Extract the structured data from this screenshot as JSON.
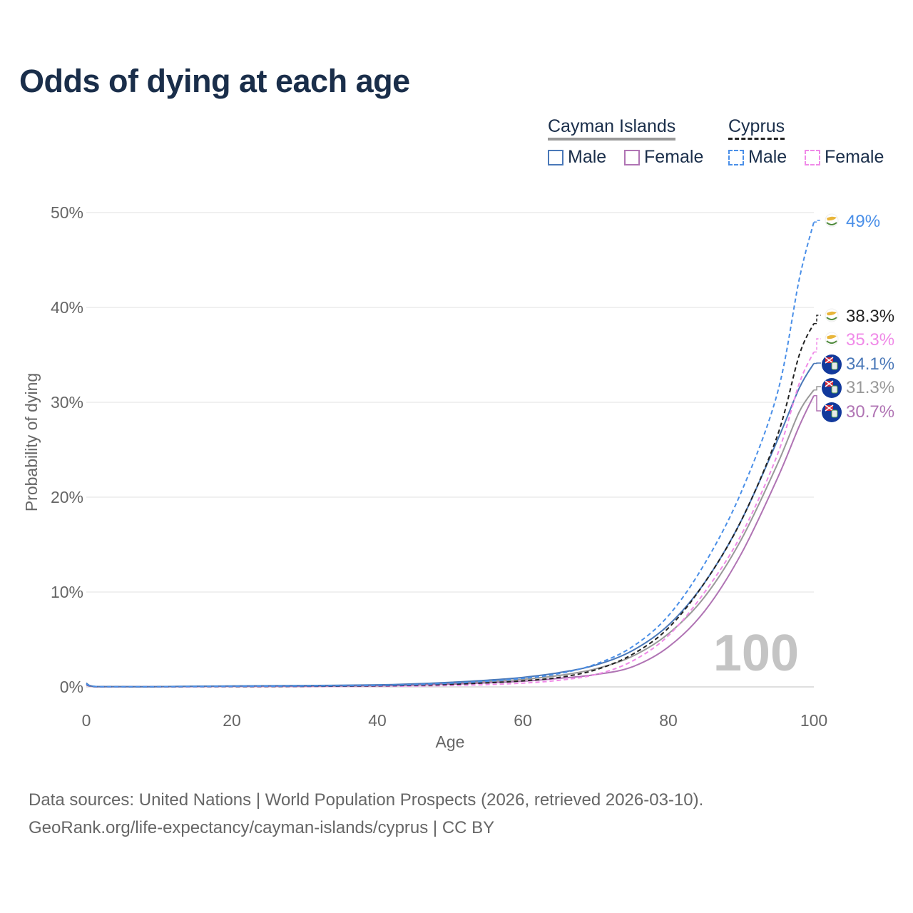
{
  "title": "Odds of dying at each age",
  "legend": {
    "groups": [
      {
        "name": "Cayman Islands",
        "items": [
          {
            "label": "Male",
            "color": "#4a78b8",
            "style": "solid"
          },
          {
            "label": "Female",
            "color": "#b074b4",
            "style": "solid"
          }
        ]
      },
      {
        "name": "Cyprus",
        "items": [
          {
            "label": "Male",
            "color": "#4a8fe8",
            "style": "dashed"
          },
          {
            "label": "Female",
            "color": "#f08ae8",
            "style": "dashed"
          }
        ]
      }
    ]
  },
  "chart_data": {
    "type": "line",
    "title": "Odds of dying at each age",
    "xlabel": "Age",
    "ylabel": "Probability of dying",
    "xlim": [
      0,
      100
    ],
    "ylim": [
      0,
      50
    ],
    "x_ticks": [
      "0",
      "20",
      "40",
      "60",
      "80",
      "100"
    ],
    "y_ticks": [
      "0%",
      "10%",
      "20%",
      "30%",
      "40%",
      "50%"
    ],
    "grid": true,
    "x": [
      0,
      1,
      5,
      10,
      20,
      30,
      40,
      45,
      50,
      55,
      60,
      65,
      70,
      75,
      80,
      85,
      90,
      95,
      98,
      100
    ],
    "series": [
      {
        "name": "Cyprus Male",
        "country": "Cyprus",
        "sex": "Male",
        "color": "#4a8fe8",
        "dash": true,
        "values": [
          0.3,
          0.05,
          0.02,
          0.02,
          0.06,
          0.09,
          0.16,
          0.24,
          0.38,
          0.6,
          0.9,
          1.4,
          2.4,
          4.2,
          7.5,
          13,
          20.5,
          31,
          43,
          49
        ],
        "end_label": "49%"
      },
      {
        "name": "Cyprus Both",
        "country": "Cyprus",
        "sex": "Both",
        "color": "#222222",
        "dash": true,
        "values": [
          0.25,
          0.04,
          0.015,
          0.015,
          0.04,
          0.06,
          0.11,
          0.17,
          0.27,
          0.42,
          0.64,
          1.0,
          1.8,
          3.4,
          6.2,
          11,
          17.5,
          26.5,
          35,
          38.3
        ],
        "end_label": "38.3%"
      },
      {
        "name": "Cyprus Female",
        "country": "Cyprus",
        "sex": "Female",
        "color": "#f08ae8",
        "dash": true,
        "values": [
          0.2,
          0.03,
          0.01,
          0.01,
          0.02,
          0.03,
          0.06,
          0.09,
          0.15,
          0.24,
          0.4,
          0.7,
          1.3,
          2.7,
          5.4,
          10,
          16,
          24.5,
          32,
          35.3
        ],
        "end_label": "35.3%"
      },
      {
        "name": "Cayman Islands Male",
        "country": "Cayman Islands",
        "sex": "Male",
        "color": "#4a78b8",
        "dash": false,
        "values": [
          0.4,
          0.06,
          0.03,
          0.03,
          0.1,
          0.14,
          0.22,
          0.32,
          0.48,
          0.7,
          1.0,
          1.5,
          2.3,
          3.8,
          6.5,
          11,
          17.5,
          26,
          31.5,
          34.1
        ],
        "end_label": "34.1%"
      },
      {
        "name": "Cayman Islands Both",
        "country": "Cayman Islands",
        "sex": "Both",
        "color": "#999999",
        "dash": false,
        "values": [
          0.35,
          0.05,
          0.025,
          0.025,
          0.08,
          0.11,
          0.17,
          0.25,
          0.38,
          0.55,
          0.8,
          1.2,
          1.9,
          3.2,
          5.6,
          9.5,
          15.5,
          23.5,
          29,
          31.3
        ],
        "end_label": "31.3%"
      },
      {
        "name": "Cayman Islands Female",
        "country": "Cayman Islands",
        "sex": "Female",
        "color": "#b074b4",
        "dash": false,
        "values": [
          0.3,
          0.04,
          0.02,
          0.02,
          0.05,
          0.07,
          0.12,
          0.18,
          0.28,
          0.42,
          0.6,
          0.9,
          1.3,
          2.1,
          4.2,
          8,
          14,
          22,
          27.5,
          30.7
        ],
        "end_label": "30.7%"
      }
    ],
    "annotation": "100"
  },
  "source": {
    "line1": "Data sources: United Nations | World Population Prospects (2026, retrieved 2026-03-10).",
    "line2": "GeoRank.org/life-expectancy/cayman-islands/cyprus | CC BY"
  }
}
